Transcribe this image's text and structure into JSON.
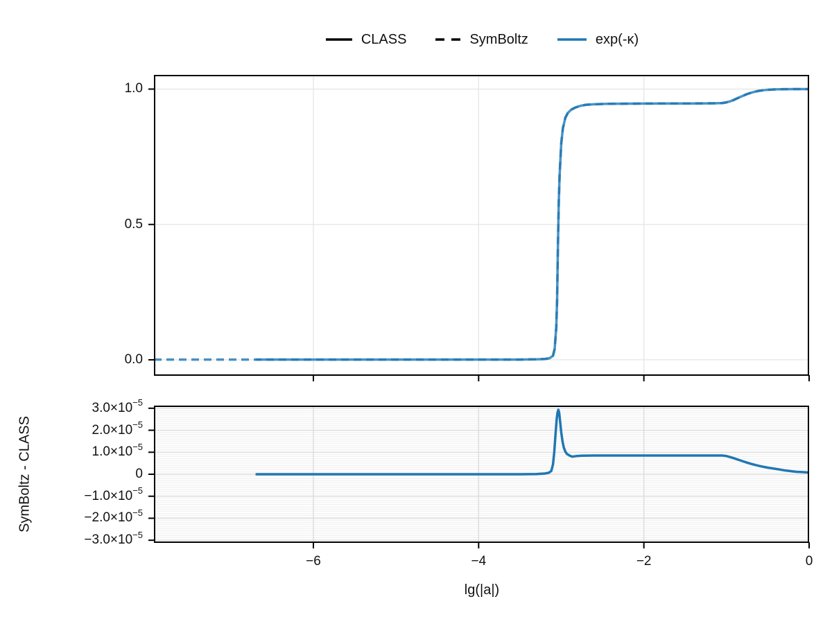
{
  "figure": {
    "xlabel": "lg(|a|)",
    "legend": {
      "items": [
        {
          "label": "CLASS",
          "sample": "solid-black-line",
          "color": "#000000",
          "dash": false
        },
        {
          "label": "SymBoltz",
          "sample": "dashed-black-line",
          "color": "#000000",
          "dash": true
        },
        {
          "label": "exp(-κ)",
          "sample": "solid-blue-line",
          "color": "#1f77b4",
          "dash": false
        }
      ]
    },
    "colors": {
      "accent_blue": "#1f77b4",
      "grid_main": "#e7e7e7",
      "grid_residual": "#dcdcdc",
      "frame": "#000000"
    }
  },
  "chart_data": [
    {
      "id": "main",
      "type": "line",
      "title": "",
      "ylabel": "",
      "xlim": [
        -7.93,
        0
      ],
      "ylim": [
        -0.059,
        1.0525
      ],
      "xticks": [
        -6,
        -4,
        -2,
        0
      ],
      "xtick_labels": [
        "−6",
        "−4",
        "−2",
        "0"
      ],
      "show_xtick_labels": false,
      "yticks": [
        0.0,
        0.5,
        1.0
      ],
      "ytick_labels": [
        "0.0",
        "0.5",
        "1.0"
      ],
      "grid": true,
      "legend_position": "top-center-outside",
      "series": [
        {
          "name": "CLASS",
          "quantity": "exp(-κ)",
          "style": "solid",
          "color": "#1f77b4",
          "opacity": 0.8,
          "points": [
            [
              -6.7,
              0.001
            ],
            [
              -6.0,
              0.001
            ],
            [
              -5.0,
              0.001
            ],
            [
              -4.0,
              0.001
            ],
            [
              -3.5,
              0.001
            ],
            [
              -3.3,
              0.002
            ],
            [
              -3.2,
              0.003
            ],
            [
              -3.14,
              0.006
            ],
            [
              -3.1,
              0.015
            ],
            [
              -3.08,
              0.04
            ],
            [
              -3.06,
              0.12
            ],
            [
              -3.05,
              0.22
            ],
            [
              -3.04,
              0.42
            ],
            [
              -3.03,
              0.58
            ],
            [
              -3.02,
              0.68
            ],
            [
              -3.0,
              0.8
            ],
            [
              -2.98,
              0.856
            ],
            [
              -2.95,
              0.895
            ],
            [
              -2.92,
              0.912
            ],
            [
              -2.88,
              0.924
            ],
            [
              -2.83,
              0.932
            ],
            [
              -2.77,
              0.938
            ],
            [
              -2.7,
              0.942
            ],
            [
              -2.6,
              0.944
            ],
            [
              -2.45,
              0.9455
            ],
            [
              -2.3,
              0.946
            ],
            [
              -2.0,
              0.9465
            ],
            [
              -1.7,
              0.947
            ],
            [
              -1.4,
              0.947
            ],
            [
              -1.15,
              0.9475
            ],
            [
              -1.05,
              0.9485
            ],
            [
              -1.0,
              0.951
            ],
            [
              -0.96,
              0.9545
            ],
            [
              -0.92,
              0.959
            ],
            [
              -0.88,
              0.9645
            ],
            [
              -0.84,
              0.97
            ],
            [
              -0.8,
              0.9755
            ],
            [
              -0.76,
              0.9805
            ],
            [
              -0.72,
              0.985
            ],
            [
              -0.68,
              0.9885
            ],
            [
              -0.64,
              0.9915
            ],
            [
              -0.6,
              0.9938
            ],
            [
              -0.56,
              0.9955
            ],
            [
              -0.52,
              0.9968
            ],
            [
              -0.48,
              0.9978
            ],
            [
              -0.44,
              0.9985
            ],
            [
              -0.4,
              0.999
            ],
            [
              -0.35,
              0.9994
            ],
            [
              -0.3,
              0.9997
            ],
            [
              -0.25,
              0.9998
            ],
            [
              -0.2,
              0.9999
            ],
            [
              -0.1,
              1.0
            ],
            [
              0,
              1.0
            ]
          ]
        },
        {
          "name": "SymBoltz",
          "quantity": "exp(-κ)",
          "style": "dashed",
          "color": "#1f77b4",
          "opacity": 0.8,
          "points": [
            [
              -7.93,
              0.001
            ],
            [
              -7.6,
              0.001
            ],
            [
              -7.3,
              0.001
            ],
            [
              -7.0,
              0.001
            ],
            [
              -6.7,
              0.001
            ],
            [
              -6.0,
              0.001
            ],
            [
              -5.0,
              0.001
            ],
            [
              -4.0,
              0.001
            ],
            [
              -3.5,
              0.001
            ],
            [
              -3.3,
              0.002
            ],
            [
              -3.2,
              0.003
            ],
            [
              -3.14,
              0.006
            ],
            [
              -3.1,
              0.015
            ],
            [
              -3.08,
              0.04
            ],
            [
              -3.06,
              0.12
            ],
            [
              -3.05,
              0.22
            ],
            [
              -3.04,
              0.42
            ],
            [
              -3.03,
              0.58
            ],
            [
              -3.02,
              0.68
            ],
            [
              -3.0,
              0.8
            ],
            [
              -2.98,
              0.856
            ],
            [
              -2.95,
              0.895
            ],
            [
              -2.92,
              0.912
            ],
            [
              -2.88,
              0.924
            ],
            [
              -2.83,
              0.932
            ],
            [
              -2.77,
              0.938
            ],
            [
              -2.7,
              0.942
            ],
            [
              -2.6,
              0.944
            ],
            [
              -2.45,
              0.9455
            ],
            [
              -2.3,
              0.946
            ],
            [
              -2.0,
              0.9465
            ],
            [
              -1.7,
              0.947
            ],
            [
              -1.4,
              0.947
            ],
            [
              -1.15,
              0.9475
            ],
            [
              -1.05,
              0.9485
            ],
            [
              -1.0,
              0.951
            ],
            [
              -0.96,
              0.9545
            ],
            [
              -0.92,
              0.959
            ],
            [
              -0.88,
              0.9645
            ],
            [
              -0.84,
              0.97
            ],
            [
              -0.8,
              0.9755
            ],
            [
              -0.76,
              0.9805
            ],
            [
              -0.72,
              0.985
            ],
            [
              -0.68,
              0.9885
            ],
            [
              -0.64,
              0.9915
            ],
            [
              -0.6,
              0.9938
            ],
            [
              -0.56,
              0.9955
            ],
            [
              -0.52,
              0.9968
            ],
            [
              -0.48,
              0.9978
            ],
            [
              -0.44,
              0.9985
            ],
            [
              -0.4,
              0.999
            ],
            [
              -0.35,
              0.9994
            ],
            [
              -0.3,
              0.9997
            ],
            [
              -0.25,
              0.9998
            ],
            [
              -0.2,
              0.9999
            ],
            [
              -0.1,
              1.0
            ],
            [
              0,
              1.0
            ]
          ]
        }
      ]
    },
    {
      "id": "residual",
      "type": "line",
      "title": "",
      "ylabel": "SymBoltz - CLASS",
      "xlim": [
        -7.93,
        0
      ],
      "ylim": [
        -3.12e-05,
        3.12e-05
      ],
      "xticks": [
        -6,
        -4,
        -2,
        0
      ],
      "xtick_labels": [
        "−6",
        "−4",
        "−2",
        "0"
      ],
      "show_xtick_labels": true,
      "yticks": [
        3e-05,
        2e-05,
        1e-05,
        0,
        -1e-05,
        -2e-05,
        -3e-05
      ],
      "ytick_labels": [
        "3.0×10^−5",
        "2.0×10^−5",
        "1.0×10^−5",
        "0",
        "−1.0×10^−5",
        "−2.0×10^−5",
        "−3.0×10^−5"
      ],
      "grid": true,
      "series": [
        {
          "name": "SymBoltz - CLASS",
          "style": "solid",
          "color": "#1f77b4",
          "opacity": 1,
          "points": [
            [
              -6.7,
              0
            ],
            [
              -6.0,
              0
            ],
            [
              -5.0,
              0
            ],
            [
              -4.0,
              0
            ],
            [
              -3.5,
              0
            ],
            [
              -3.3,
              1e-07
            ],
            [
              -3.2,
              3e-07
            ],
            [
              -3.15,
              7e-07
            ],
            [
              -3.12,
              1.5e-06
            ],
            [
              -3.1,
              4.5e-06
            ],
            [
              -3.085,
              1e-05
            ],
            [
              -3.07,
              1.8e-05
            ],
            [
              -3.055,
              2.5e-05
            ],
            [
              -3.045,
              2.8e-05
            ],
            [
              -3.035,
              2.93e-05
            ],
            [
              -3.025,
              2.8e-05
            ],
            [
              -3.015,
              2.45e-05
            ],
            [
              -3.0,
              1.9e-05
            ],
            [
              -2.985,
              1.5e-05
            ],
            [
              -2.97,
              1.22e-05
            ],
            [
              -2.95,
              1.02e-05
            ],
            [
              -2.93,
              9.2e-06
            ],
            [
              -2.9,
              8.5e-06
            ],
            [
              -2.87,
              8e-06
            ],
            [
              -2.845,
              8.1e-06
            ],
            [
              -2.81,
              8.3e-06
            ],
            [
              -2.75,
              8.45e-06
            ],
            [
              -2.6,
              8.5e-06
            ],
            [
              -2.4,
              8.5e-06
            ],
            [
              -2.2,
              8.5e-06
            ],
            [
              -2.0,
              8.5e-06
            ],
            [
              -1.8,
              8.5e-06
            ],
            [
              -1.6,
              8.5e-06
            ],
            [
              -1.4,
              8.5e-06
            ],
            [
              -1.2,
              8.5e-06
            ],
            [
              -1.05,
              8.5e-06
            ],
            [
              -1.0,
              8.25e-06
            ],
            [
              -0.95,
              7.75e-06
            ],
            [
              -0.9,
              7.15e-06
            ],
            [
              -0.85,
              6.5e-06
            ],
            [
              -0.8,
              5.85e-06
            ],
            [
              -0.75,
              5.25e-06
            ],
            [
              -0.7,
              4.7e-06
            ],
            [
              -0.65,
              4.2e-06
            ],
            [
              -0.6,
              3.75e-06
            ],
            [
              -0.55,
              3.35e-06
            ],
            [
              -0.5,
              3e-06
            ],
            [
              -0.45,
              2.7e-06
            ],
            [
              -0.4,
              2.4e-06
            ],
            [
              -0.35,
              2.1e-06
            ],
            [
              -0.3,
              1.8e-06
            ],
            [
              -0.25,
              1.55e-06
            ],
            [
              -0.2,
              1.3e-06
            ],
            [
              -0.15,
              1.1e-06
            ],
            [
              -0.1,
              1e-06
            ],
            [
              -0.05,
              9e-07
            ],
            [
              0,
              8e-07
            ]
          ]
        }
      ]
    }
  ]
}
